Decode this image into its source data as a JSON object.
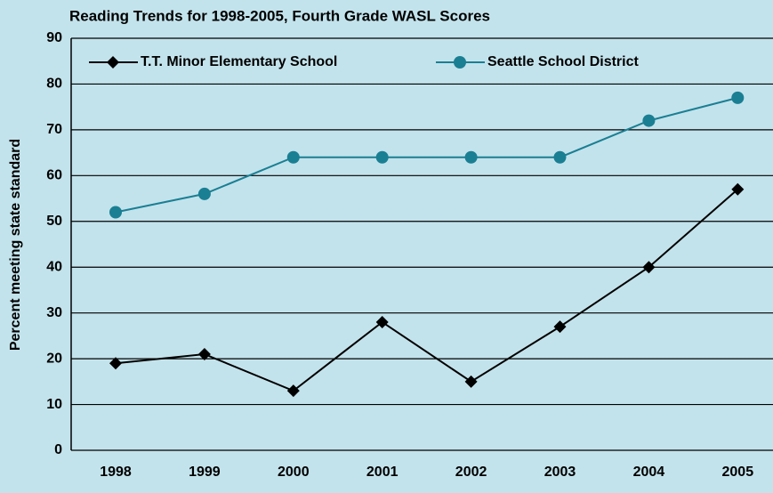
{
  "chart_data": {
    "type": "line",
    "title": "Reading Trends for 1998-2005, Fourth Grade WASL Scores",
    "y_label": "Percent meeting state standard",
    "categories": [
      "1998",
      "1999",
      "2000",
      "2001",
      "2002",
      "2003",
      "2004",
      "2005"
    ],
    "series": [
      {
        "name": "T.T. Minor Elementary School",
        "color": "#000000",
        "marker": "diamond",
        "values": [
          19,
          21,
          13,
          28,
          15,
          27,
          40,
          57
        ]
      },
      {
        "name": "Seattle School District",
        "color": "#1a7f93",
        "marker": "circle",
        "values": [
          52,
          56,
          64,
          64,
          64,
          64,
          72,
          77
        ]
      }
    ],
    "ylim": [
      0,
      90
    ],
    "yticks": [
      0,
      10,
      20,
      30,
      40,
      50,
      60,
      70,
      80,
      90
    ],
    "grid": true
  }
}
